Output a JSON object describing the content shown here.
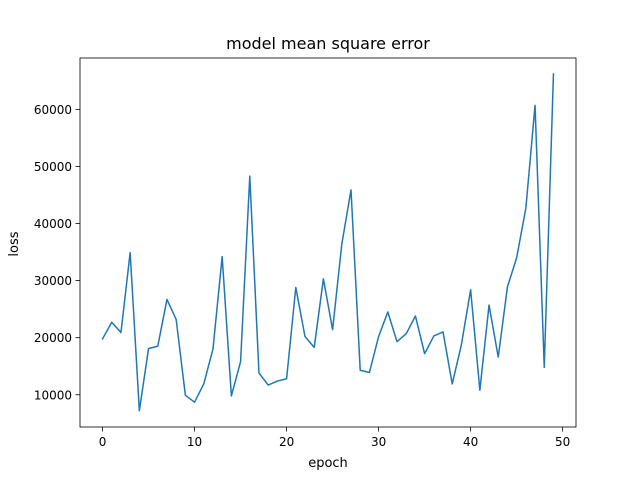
{
  "chart_data": {
    "type": "line",
    "title": "model mean square error",
    "xlabel": "epoch",
    "ylabel": "loss",
    "xlim": [
      -2.45,
      51.45
    ],
    "ylim": [
      4350,
      69000
    ],
    "xticks": [
      0,
      10,
      20,
      30,
      40,
      50
    ],
    "yticks": [
      10000,
      20000,
      30000,
      40000,
      50000,
      60000
    ],
    "grid": false,
    "series_color": "#1f77b4",
    "series": [
      {
        "x": [
          0,
          1,
          2,
          3,
          4,
          5,
          6,
          7,
          8,
          9,
          10,
          11,
          12,
          13,
          14,
          15,
          16,
          17,
          18,
          19,
          20,
          21,
          22,
          23,
          24,
          25,
          26,
          27,
          28,
          29,
          30,
          31,
          32,
          33,
          34,
          35,
          36,
          37,
          38,
          39,
          40,
          41,
          42,
          43,
          44,
          45,
          46,
          47,
          48,
          49
        ],
        "values": [
          19800,
          22700,
          20900,
          34900,
          7200,
          18100,
          18500,
          26700,
          23200,
          9900,
          8700,
          11900,
          18000,
          34200,
          9800,
          15800,
          48300,
          13800,
          11700,
          12400,
          12800,
          28800,
          20200,
          18300,
          30300,
          21400,
          36400,
          45900,
          14300,
          13900,
          20200,
          24500,
          19300,
          20700,
          23800,
          17200,
          20300,
          21000,
          11900,
          18800,
          28400,
          10800,
          25700,
          16600,
          28900,
          34000,
          42700,
          60700,
          14800,
          66200
        ]
      }
    ]
  }
}
